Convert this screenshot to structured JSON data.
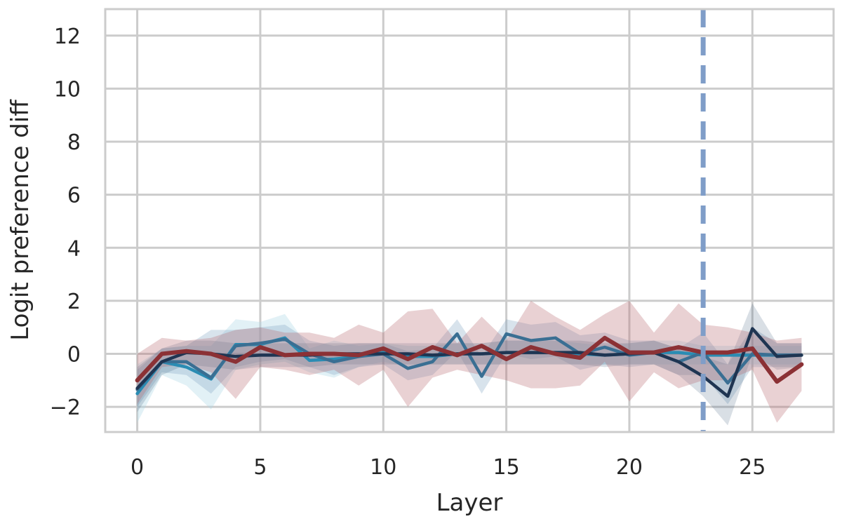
{
  "chart_data": {
    "type": "line",
    "title": "",
    "xlabel": "Layer",
    "ylabel": "Logit preference diff",
    "xlim": [
      -1.3,
      28.3
    ],
    "ylim": [
      -2.95,
      13.0
    ],
    "xticks": [
      0,
      5,
      10,
      15,
      20,
      25
    ],
    "yticks": [
      -2,
      0,
      2,
      4,
      6,
      8,
      10,
      12
    ],
    "ytick_labels": [
      "−2",
      "0",
      "2",
      "4",
      "6",
      "8",
      "10",
      "12"
    ],
    "grid": true,
    "vline": {
      "x": 23,
      "color": "#7f9dc8",
      "style": "dashed"
    },
    "x": [
      0,
      1,
      2,
      3,
      4,
      5,
      6,
      7,
      8,
      9,
      10,
      11,
      12,
      13,
      14,
      15,
      16,
      17,
      18,
      19,
      20,
      21,
      22,
      23,
      24,
      25,
      26,
      27
    ],
    "series": [
      {
        "color": "#2a8cb3",
        "band_color": "#add8e6",
        "band_opacity": 0.35,
        "values": [
          -1.5,
          -0.3,
          -0.5,
          -0.95,
          0.35,
          0.35,
          0.6,
          -0.25,
          -0.2,
          -0.1,
          0.05,
          -0.1,
          -0.1,
          0.0,
          0.0,
          0.05,
          0.05,
          0.05,
          0.0,
          -0.05,
          0.0,
          0.05,
          0.05,
          -0.05,
          -0.05,
          -0.05,
          -0.05,
          -0.05
        ],
        "lower": [
          -2.6,
          -0.8,
          -1.2,
          -2.1,
          -0.6,
          -0.4,
          -0.3,
          -0.7,
          -0.9,
          -0.5,
          -0.3,
          -0.5,
          -0.4,
          -0.4,
          -0.4,
          -0.4,
          -0.4,
          -0.4,
          -0.4,
          -0.4,
          -0.4,
          -0.4,
          -0.4,
          -0.4,
          -0.4,
          -0.4,
          -0.4,
          -0.4
        ],
        "upper": [
          -0.4,
          0.2,
          0.3,
          0.3,
          1.3,
          1.2,
          1.5,
          0.2,
          0.5,
          0.3,
          0.4,
          0.3,
          0.3,
          0.4,
          0.4,
          0.5,
          0.5,
          0.5,
          0.4,
          0.3,
          0.4,
          0.5,
          0.5,
          0.3,
          0.3,
          0.3,
          0.3,
          0.3
        ]
      },
      {
        "color": "#3a6f93",
        "band_color": "#7fa3bf",
        "band_opacity": 0.3,
        "values": [
          -1.35,
          -0.3,
          -0.3,
          -0.9,
          0.3,
          0.4,
          0.55,
          0.0,
          -0.3,
          -0.1,
          0.0,
          -0.55,
          -0.3,
          0.75,
          -0.85,
          0.75,
          0.5,
          0.6,
          0.0,
          0.25,
          -0.05,
          0.05,
          -0.3,
          0.05,
          -1.1,
          0.0,
          -0.05,
          -0.05
        ],
        "lower": [
          -2.0,
          -0.7,
          -0.8,
          -1.5,
          -0.5,
          -0.3,
          -0.2,
          -0.5,
          -0.8,
          -0.5,
          -0.4,
          -1.0,
          -0.8,
          0.1,
          -1.5,
          0.0,
          -0.2,
          -0.1,
          -0.6,
          -0.4,
          -0.5,
          -0.4,
          -0.8,
          -0.8,
          -1.9,
          -0.5,
          -0.5,
          -0.5
        ],
        "upper": [
          -0.6,
          0.2,
          0.3,
          0.9,
          0.9,
          1.0,
          1.1,
          0.5,
          0.3,
          0.4,
          0.4,
          0.1,
          0.2,
          1.3,
          -0.1,
          1.3,
          1.1,
          1.2,
          0.7,
          0.8,
          0.5,
          0.5,
          0.2,
          0.8,
          -0.4,
          1.0,
          0.4,
          0.4
        ]
      },
      {
        "color": "#1f3552",
        "band_color": "#2f4f6f",
        "band_opacity": 0.18,
        "values": [
          -1.3,
          -0.3,
          0.05,
          0.0,
          -0.1,
          -0.05,
          -0.05,
          -0.05,
          0.0,
          0.0,
          0.0,
          0.0,
          -0.05,
          0.0,
          0.0,
          0.05,
          0.05,
          0.05,
          0.05,
          -0.05,
          0.0,
          0.05,
          -0.3,
          -0.85,
          -1.6,
          0.95,
          -0.1,
          -0.05
        ],
        "lower": [
          -2.2,
          -0.8,
          -0.4,
          -0.5,
          -0.6,
          -0.5,
          -0.5,
          -0.5,
          -0.4,
          -0.4,
          -0.4,
          -0.4,
          -0.4,
          -0.4,
          -0.4,
          -0.4,
          -0.4,
          -0.4,
          -0.4,
          -0.5,
          -0.4,
          -0.4,
          -0.8,
          -1.6,
          -2.7,
          0.0,
          -0.6,
          -0.5
        ],
        "upper": [
          -0.5,
          0.2,
          0.5,
          0.5,
          0.4,
          0.4,
          0.4,
          0.4,
          0.4,
          0.4,
          0.4,
          0.4,
          0.4,
          0.4,
          0.4,
          0.5,
          0.5,
          0.5,
          0.5,
          0.4,
          0.4,
          0.5,
          0.2,
          -0.1,
          -0.4,
          1.9,
          0.4,
          0.4
        ]
      },
      {
        "color": "#8b3135",
        "band_color": "#b5686d",
        "band_opacity": 0.3,
        "values": [
          -1.0,
          0.0,
          0.1,
          0.0,
          -0.3,
          0.25,
          -0.05,
          0.0,
          0.0,
          -0.05,
          0.2,
          -0.2,
          0.25,
          -0.05,
          0.3,
          -0.2,
          0.25,
          0.0,
          -0.15,
          0.6,
          0.05,
          0.05,
          0.25,
          0.05,
          0.05,
          0.2,
          -1.05,
          -0.4
        ],
        "lower": [
          -1.9,
          -0.5,
          -0.4,
          -0.7,
          -1.7,
          -0.5,
          -0.6,
          -0.8,
          -0.6,
          -1.2,
          -0.6,
          -2.0,
          -0.9,
          -0.6,
          -0.8,
          -1.0,
          -1.3,
          -1.3,
          -1.2,
          -0.3,
          -1.8,
          -0.7,
          -1.3,
          -1.0,
          -1.0,
          -0.6,
          -2.6,
          -1.4
        ],
        "upper": [
          0.0,
          0.6,
          0.5,
          0.6,
          0.9,
          1.0,
          0.8,
          0.8,
          0.6,
          1.1,
          0.8,
          1.6,
          1.7,
          0.4,
          1.4,
          0.5,
          2.0,
          1.4,
          0.9,
          1.5,
          2.0,
          0.8,
          1.9,
          1.1,
          1.0,
          0.8,
          0.5,
          0.6
        ]
      }
    ]
  }
}
